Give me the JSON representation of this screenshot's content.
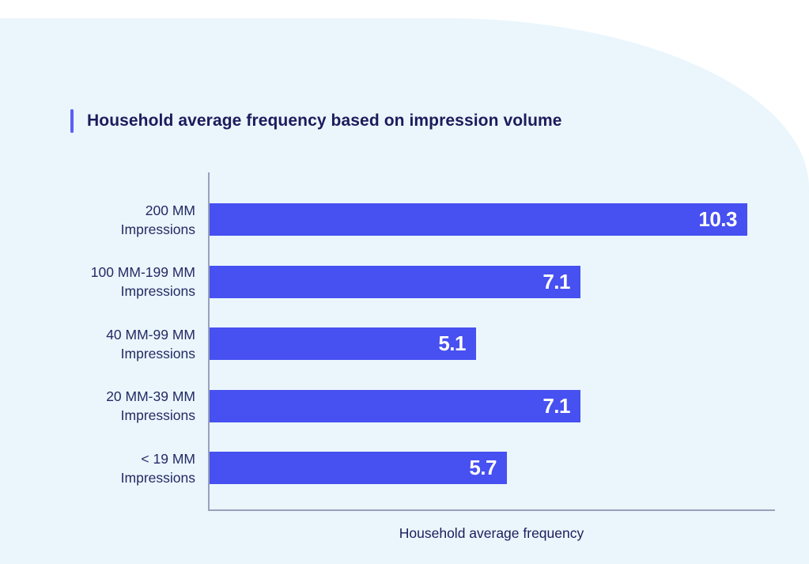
{
  "page": {
    "background_color": "#FFFFFF",
    "panel_color": "#EAF6FC"
  },
  "header": {
    "title": "Household average frequency based on impression volume",
    "accent_color": "#5B5FF4",
    "title_color": "#1E1B5C"
  },
  "chart_data": {
    "type": "bar",
    "orientation": "horizontal",
    "title": "Household average frequency based on impression volume",
    "categories": [
      "200 MM Impressions",
      "100 MM-199 MM Impressions",
      "40 MM-99 MM Impressions",
      "20 MM-39 MM Impressions",
      "< 19 MM Impressions"
    ],
    "category_lines": [
      [
        "200 MM",
        "Impressions"
      ],
      [
        "100 MM-199 MM",
        "Impressions"
      ],
      [
        "40 MM-99 MM",
        "Impressions"
      ],
      [
        "20 MM-39 MM",
        "Impressions"
      ],
      [
        "< 19 MM",
        "Impressions"
      ]
    ],
    "values": [
      10.3,
      7.1,
      5.1,
      7.1,
      5.7
    ],
    "value_labels": [
      "10.3",
      "7.1",
      "5.1",
      "7.1",
      "5.7"
    ],
    "xlabel": "Household average frequency",
    "ylabel": "",
    "xlim": [
      0,
      10.9
    ],
    "grid": false,
    "legend": false,
    "bar_color": "#4750F0",
    "value_label_color": "#FFFFFF",
    "axis_color": "#99A1BB"
  }
}
